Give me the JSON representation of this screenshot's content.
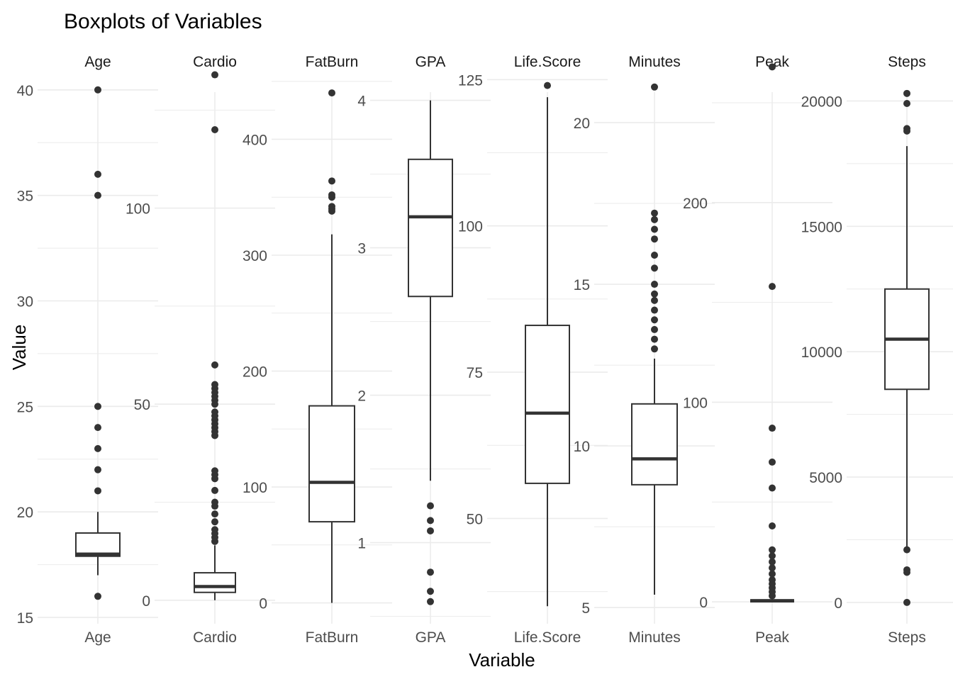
{
  "chart_data": {
    "type": "boxplot",
    "title": "Boxplots of Variables",
    "xlabel": "Variable",
    "ylabel": "Value",
    "grid": true,
    "facet_scales": "free_y",
    "colors": {
      "box_stroke": "#333333",
      "outlier": "#333333",
      "grid": "#ebebeb",
      "text": "#4d4d4d",
      "title": "#000000"
    },
    "panels": [
      {
        "name": "Age",
        "category": "Age",
        "ylim": [
          14.7,
          40.9
        ],
        "ticks": [
          15,
          20,
          25,
          30,
          35,
          40
        ],
        "q1": 17.9,
        "median": 18.0,
        "q3": 19.0,
        "whisker_low": 17.0,
        "whisker_high": 20.0,
        "outliers": [
          16,
          21,
          22,
          23,
          24,
          25,
          35,
          36,
          40
        ]
      },
      {
        "name": "Cardio",
        "category": "Cardio",
        "ylim": [
          -6,
          135
        ],
        "ticks": [
          0,
          50,
          100
        ],
        "q1": 2,
        "median": 3.5,
        "q3": 7,
        "whisker_low": 0,
        "whisker_high": 14,
        "outliers": [
          15,
          16,
          17,
          18,
          20,
          22,
          24,
          25,
          28,
          31,
          32,
          33,
          42,
          43,
          44,
          45,
          46,
          47,
          48,
          50,
          51,
          52,
          53,
          54,
          55,
          60,
          120,
          134
        ]
      },
      {
        "name": "FatBurn",
        "category": "FatBurn",
        "ylim": [
          -18,
          459
        ],
        "ticks": [
          0,
          100,
          200,
          300,
          400
        ],
        "q1": 70,
        "median": 104,
        "q3": 170,
        "whisker_low": 0,
        "whisker_high": 318,
        "outliers": [
          338,
          340,
          342,
          350,
          352,
          364,
          440
        ]
      },
      {
        "name": "GPA",
        "category": "GPA",
        "ylim": [
          0.45,
          4.2
        ],
        "ticks": [
          1,
          2,
          3,
          4
        ],
        "q1": 2.67,
        "median": 3.21,
        "q3": 3.6,
        "whisker_low": 1.42,
        "whisker_high": 4.0,
        "outliers": [
          0.6,
          0.67,
          0.8,
          1.08,
          1.15,
          1.25
        ]
      },
      {
        "name": "Life.Score",
        "category": "Life.Score",
        "ylim": [
          32,
          126.5
        ],
        "ticks": [
          50,
          75,
          100,
          125
        ],
        "q1": 56,
        "median": 68,
        "q3": 83,
        "whisker_low": 35,
        "whisker_high": 122,
        "outliers": [
          124
        ]
      },
      {
        "name": "Minutes",
        "category": "Minutes",
        "ylim": [
          4.5,
          21.6
        ],
        "ticks": [
          5,
          10,
          15,
          20
        ],
        "q1": 8.8,
        "median": 9.6,
        "q3": 11.3,
        "whisker_low": 5.4,
        "whisker_high": 12.7,
        "outliers": [
          13.0,
          13.3,
          13.6,
          13.9,
          14.2,
          14.5,
          14.7,
          15.0,
          15.5,
          15.9,
          16.4,
          16.7,
          17.0,
          17.2,
          21.1
        ]
      },
      {
        "name": "Peak",
        "category": "Peak",
        "ylim": [
          -11,
          266
        ],
        "ticks": [
          0,
          100,
          200
        ],
        "q1": 0,
        "median": 0.5,
        "q3": 1,
        "whisker_low": 0,
        "whisker_high": 2,
        "outliers": [
          3,
          5,
          7,
          9,
          11,
          14,
          17,
          20,
          23,
          26,
          38,
          57,
          70,
          87,
          158,
          268
        ]
      },
      {
        "name": "Steps",
        "category": "Steps",
        "ylim": [
          -850,
          21200
        ],
        "ticks": [
          0,
          5000,
          10000,
          15000,
          20000
        ],
        "q1": 8500,
        "median": 10500,
        "q3": 12500,
        "whisker_low": 2100,
        "whisker_high": 18200,
        "outliers": [
          0,
          1200,
          1300,
          2100,
          18800,
          18900,
          19900,
          20300
        ]
      }
    ]
  }
}
